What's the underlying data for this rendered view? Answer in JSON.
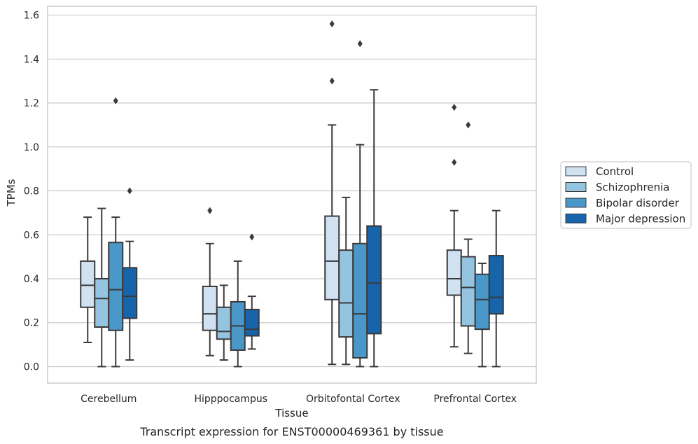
{
  "chart_data": {
    "type": "box",
    "xlabel": "Tissue",
    "ylabel": "TPMs",
    "caption": "Transcript expression for ENST00000469361 by tissue",
    "ylim": [
      -0.075,
      1.64
    ],
    "yticks": [
      "0.0",
      "0.2",
      "0.4",
      "0.6",
      "0.8",
      "1.0",
      "1.2",
      "1.4",
      "1.6"
    ],
    "grid": "horizontal",
    "legend_position": "right, outside plot",
    "categories": [
      "Cerebellum",
      "Hipppocampus",
      "Orbitofontal Cortex",
      "Prefrontal Cortex"
    ],
    "series": [
      {
        "name": "Control",
        "color": "#d0e1f2",
        "boxes": [
          {
            "whisker_low": 0.11,
            "q1": 0.27,
            "median": 0.37,
            "q3": 0.48,
            "whisker_high": 0.68,
            "outliers": []
          },
          {
            "whisker_low": 0.05,
            "q1": 0.165,
            "median": 0.24,
            "q3": 0.365,
            "whisker_high": 0.56,
            "outliers": [
              0.71
            ]
          },
          {
            "whisker_low": 0.01,
            "q1": 0.305,
            "median": 0.48,
            "q3": 0.685,
            "whisker_high": 1.1,
            "outliers": [
              1.3,
              1.56
            ]
          },
          {
            "whisker_low": 0.09,
            "q1": 0.325,
            "median": 0.4,
            "q3": 0.53,
            "whisker_high": 0.71,
            "outliers": [
              0.93,
              1.18
            ]
          }
        ]
      },
      {
        "name": "Schizophrenia",
        "color": "#94c4df",
        "boxes": [
          {
            "whisker_low": 0.0,
            "q1": 0.18,
            "median": 0.31,
            "q3": 0.4,
            "whisker_high": 0.72,
            "outliers": []
          },
          {
            "whisker_low": 0.03,
            "q1": 0.125,
            "median": 0.16,
            "q3": 0.27,
            "whisker_high": 0.37,
            "outliers": []
          },
          {
            "whisker_low": 0.01,
            "q1": 0.135,
            "median": 0.29,
            "q3": 0.53,
            "whisker_high": 0.77,
            "outliers": []
          },
          {
            "whisker_low": 0.06,
            "q1": 0.185,
            "median": 0.36,
            "q3": 0.5,
            "whisker_high": 0.58,
            "outliers": [
              1.1
            ]
          }
        ]
      },
      {
        "name": "Bipolar disorder",
        "color": "#4a98c9",
        "boxes": [
          {
            "whisker_low": 0.0,
            "q1": 0.165,
            "median": 0.35,
            "q3": 0.565,
            "whisker_high": 0.68,
            "outliers": [
              1.21
            ]
          },
          {
            "whisker_low": 0.0,
            "q1": 0.075,
            "median": 0.185,
            "q3": 0.295,
            "whisker_high": 0.48,
            "outliers": []
          },
          {
            "whisker_low": 0.0,
            "q1": 0.04,
            "median": 0.24,
            "q3": 0.56,
            "whisker_high": 1.01,
            "outliers": [
              1.47
            ]
          },
          {
            "whisker_low": 0.0,
            "q1": 0.17,
            "median": 0.305,
            "q3": 0.42,
            "whisker_high": 0.47,
            "outliers": []
          }
        ]
      },
      {
        "name": "Major depression",
        "color": "#1764ab",
        "boxes": [
          {
            "whisker_low": 0.03,
            "q1": 0.22,
            "median": 0.32,
            "q3": 0.45,
            "whisker_high": 0.57,
            "outliers": [
              0.8
            ]
          },
          {
            "whisker_low": 0.08,
            "q1": 0.14,
            "median": 0.17,
            "q3": 0.26,
            "whisker_high": 0.32,
            "outliers": [
              0.59
            ]
          },
          {
            "whisker_low": 0.0,
            "q1": 0.15,
            "median": 0.38,
            "q3": 0.64,
            "whisker_high": 1.26,
            "outliers": []
          },
          {
            "whisker_low": 0.0,
            "q1": 0.24,
            "median": 0.315,
            "q3": 0.505,
            "whisker_high": 0.71,
            "outliers": []
          }
        ]
      }
    ]
  }
}
